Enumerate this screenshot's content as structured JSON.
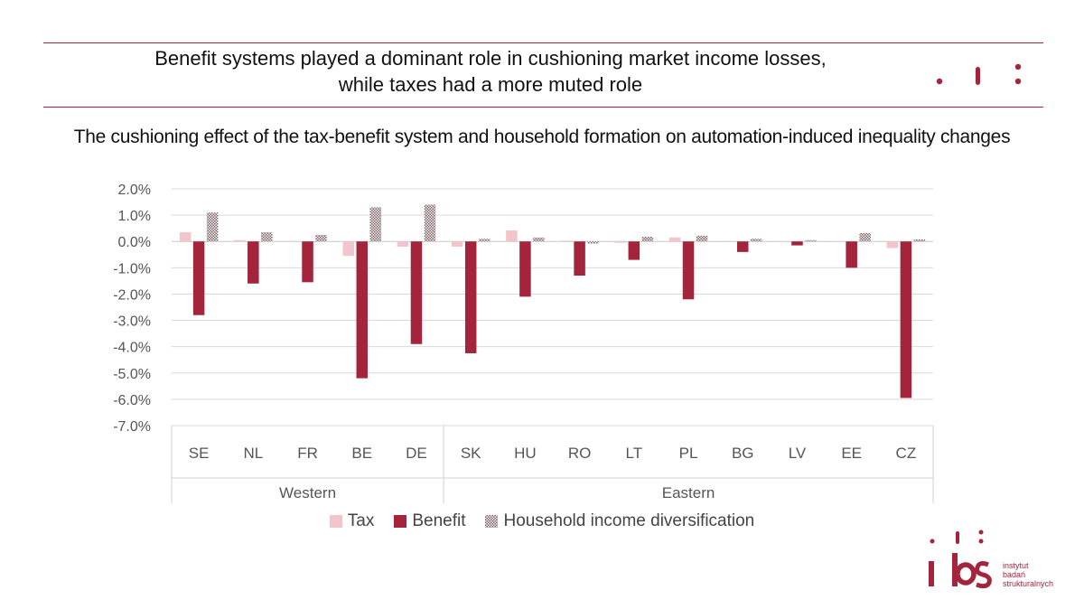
{
  "header": {
    "title_line1": "Benefit systems played a dominant role in cushioning market income losses,",
    "title_line2": "while taxes had a more muted role",
    "accent_color": "#a3243b"
  },
  "subtitle": "The cushioning effect of the tax-benefit system and household formation on automation-induced inequality changes",
  "chart_data": {
    "type": "bar",
    "categories": [
      "SE",
      "NL",
      "FR",
      "BE",
      "DE",
      "SK",
      "HU",
      "RO",
      "LT",
      "PL",
      "BG",
      "LV",
      "EE",
      "CZ"
    ],
    "groups": [
      {
        "label": "Western",
        "categories": [
          "SE",
          "NL",
          "FR",
          "BE",
          "DE"
        ]
      },
      {
        "label": "Eastern",
        "categories": [
          "SK",
          "HU",
          "RO",
          "LT",
          "PL",
          "BG",
          "LV",
          "EE",
          "CZ"
        ]
      }
    ],
    "series": [
      {
        "name": "Tax",
        "color": "#f2c4cb",
        "pattern": "solid",
        "values": [
          0.35,
          0.05,
          0.02,
          -0.55,
          -0.2,
          -0.2,
          0.42,
          0.03,
          -0.05,
          0.15,
          0.0,
          -0.02,
          -0.02,
          -0.25
        ]
      },
      {
        "name": "Benefit",
        "color": "#a3243b",
        "pattern": "solid",
        "values": [
          -2.8,
          -1.6,
          -1.55,
          -5.2,
          -3.9,
          -4.25,
          -2.1,
          -1.3,
          -0.7,
          -2.2,
          -0.4,
          -0.15,
          -1.0,
          -5.95
        ]
      },
      {
        "name": "Household income diversification",
        "color": "#9a7a80",
        "pattern": "dots",
        "values": [
          1.1,
          0.35,
          0.25,
          1.3,
          1.4,
          0.1,
          0.15,
          -0.08,
          0.18,
          0.22,
          0.1,
          0.05,
          0.32,
          0.08
        ]
      }
    ],
    "yticks": [
      "2.0%",
      "1.0%",
      "0.0%",
      "-1.0%",
      "-2.0%",
      "-3.0%",
      "-4.0%",
      "-5.0%",
      "-6.0%",
      "-7.0%"
    ],
    "ylim": [
      -7,
      2
    ],
    "grid": true,
    "legend_position": "bottom"
  },
  "logo": {
    "line1": "instytut",
    "line2": "badań",
    "line3": "strukturalnych"
  }
}
